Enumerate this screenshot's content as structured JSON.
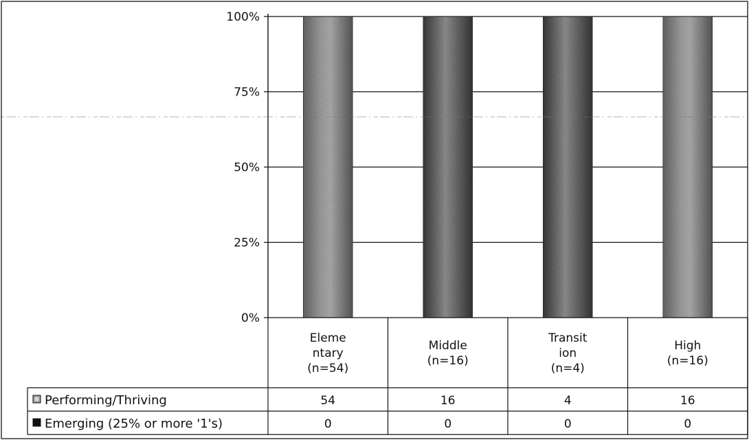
{
  "chart_data": {
    "type": "bar",
    "stacked": true,
    "percent": true,
    "categories": [
      [
        "Eleme",
        "ntary",
        "(n=54)"
      ],
      [
        "Middle",
        "(n=16)"
      ],
      [
        "Transit",
        "ion",
        "(n=4)"
      ],
      [
        "High",
        "(n=16)"
      ]
    ],
    "series": [
      {
        "name": "Performing/Thriving",
        "values": [
          54,
          16,
          4,
          16
        ],
        "color": "#8c8c8c"
      },
      {
        "name": "Emerging (25% or more '1's)",
        "values": [
          0,
          0,
          0,
          0
        ],
        "color": "#222222"
      }
    ],
    "y_ticks": [
      "0%",
      "25%",
      "50%",
      "75%",
      "100%"
    ],
    "ylim": [
      0,
      100
    ],
    "grid": true,
    "legend": "data-table"
  }
}
